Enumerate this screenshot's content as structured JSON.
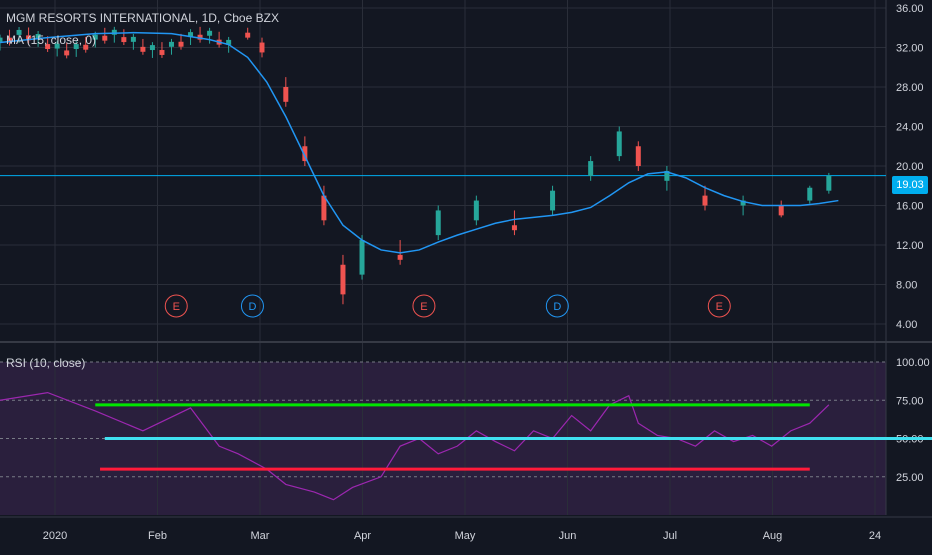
{
  "header": {
    "title": "MGM RESORTS INTERNATIONAL, 1D, Cboe BZX",
    "ma_label": "MA (15, close, 0)",
    "rsi_label": "RSI (10, close)",
    "last_price": "19.03"
  },
  "colors": {
    "background": "#131722",
    "up": "#26a69a",
    "down": "#ef5350",
    "ma": "#2196f3",
    "rsi": "#9c27b0",
    "rsi_band": "#2a1f3d",
    "line_green": "#00e600",
    "line_cyan": "#40e0f0",
    "line_red": "#ff1a3a",
    "grid": "#2a2e39",
    "last_price_line": "#00aeef"
  },
  "events": [
    {
      "label": "E",
      "date": "Feb 13"
    },
    {
      "label": "D",
      "date": "Mar 6"
    },
    {
      "label": "E",
      "date": "Apr 29"
    },
    {
      "label": "D",
      "date": "Jun 5"
    },
    {
      "label": "E",
      "date": "Jul 29"
    }
  ],
  "chart_data": [
    {
      "type": "candlestick",
      "title": "MGM RESORTS INTERNATIONAL, 1D, Cboe BZX",
      "x_ticks": [
        "2020",
        "Feb",
        "Mar",
        "Apr",
        "May",
        "Jun",
        "Jul",
        "Aug",
        "24"
      ],
      "y_ticks": [
        "36.00",
        "32.00",
        "28.00",
        "24.00",
        "20.00",
        "16.00",
        "12.00",
        "8.00",
        "4.00"
      ],
      "ylim": [
        4,
        36
      ],
      "last_value": 19.03,
      "series": [
        {
          "name": "MA (15, close, 0)",
          "type": "line",
          "points": [
            [
              0,
              32.5
            ],
            [
              10,
              33.0
            ],
            [
              20,
              33.4
            ],
            [
              28,
              33.5
            ],
            [
              36,
              33.4
            ],
            [
              44,
              32.8
            ],
            [
              48,
              32.3
            ],
            [
              52,
              31.0
            ],
            [
              56,
              28.5
            ],
            [
              60,
              25.0
            ],
            [
              64,
              21.0
            ],
            [
              68,
              17.0
            ],
            [
              72,
              14.0
            ],
            [
              76,
              12.5
            ],
            [
              80,
              11.5
            ],
            [
              84,
              11.2
            ],
            [
              88,
              11.5
            ],
            [
              92,
              12.3
            ],
            [
              96,
              13.0
            ],
            [
              100,
              13.6
            ],
            [
              104,
              14.2
            ],
            [
              108,
              14.6
            ],
            [
              112,
              14.8
            ],
            [
              116,
              15.0
            ],
            [
              120,
              15.3
            ],
            [
              124,
              15.8
            ],
            [
              128,
              17.0
            ],
            [
              132,
              18.3
            ],
            [
              136,
              19.2
            ],
            [
              140,
              19.4
            ],
            [
              144,
              18.8
            ],
            [
              148,
              17.8
            ],
            [
              152,
              17.0
            ],
            [
              156,
              16.4
            ],
            [
              160,
              16.0
            ],
            [
              164,
              16.0
            ],
            [
              168,
              16.0
            ],
            [
              172,
              16.2
            ],
            [
              176,
              16.5
            ]
          ]
        }
      ],
      "candles": [
        {
          "x": 52,
          "o": 33.5,
          "h": 34.0,
          "l": 32.8,
          "c": 33.0
        },
        {
          "x": 55,
          "o": 32.5,
          "h": 33.0,
          "l": 31.0,
          "c": 31.5
        },
        {
          "x": 60,
          "o": 28.0,
          "h": 29.0,
          "l": 26.0,
          "c": 26.5
        },
        {
          "x": 64,
          "o": 22.0,
          "h": 23.0,
          "l": 20.0,
          "c": 20.5
        },
        {
          "x": 68,
          "o": 17.0,
          "h": 18.0,
          "l": 14.0,
          "c": 14.5
        },
        {
          "x": 72,
          "o": 10.0,
          "h": 11.0,
          "l": 6.0,
          "c": 7.0
        },
        {
          "x": 76,
          "o": 9.0,
          "h": 13.0,
          "l": 8.5,
          "c": 12.5
        },
        {
          "x": 84,
          "o": 11.0,
          "h": 12.5,
          "l": 10.0,
          "c": 10.5
        },
        {
          "x": 92,
          "o": 13.0,
          "h": 16.0,
          "l": 12.5,
          "c": 15.5
        },
        {
          "x": 100,
          "o": 14.5,
          "h": 17.0,
          "l": 14.0,
          "c": 16.5
        },
        {
          "x": 108,
          "o": 14.0,
          "h": 15.5,
          "l": 13.0,
          "c": 13.5
        },
        {
          "x": 116,
          "o": 15.5,
          "h": 18.0,
          "l": 15.0,
          "c": 17.5
        },
        {
          "x": 124,
          "o": 19.0,
          "h": 21.0,
          "l": 18.5,
          "c": 20.5
        },
        {
          "x": 130,
          "o": 21.0,
          "h": 24.0,
          "l": 20.5,
          "c": 23.5
        },
        {
          "x": 134,
          "o": 22.0,
          "h": 22.5,
          "l": 19.5,
          "c": 20.0
        },
        {
          "x": 140,
          "o": 18.5,
          "h": 20.0,
          "l": 17.5,
          "c": 19.5
        },
        {
          "x": 148,
          "o": 17.0,
          "h": 18.0,
          "l": 15.5,
          "c": 16.0
        },
        {
          "x": 156,
          "o": 16.0,
          "h": 17.0,
          "l": 15.0,
          "c": 16.5
        },
        {
          "x": 164,
          "o": 16.0,
          "h": 16.5,
          "l": 14.8,
          "c": 15.0
        },
        {
          "x": 170,
          "o": 16.5,
          "h": 18.0,
          "l": 16.2,
          "c": 17.8
        },
        {
          "x": 174,
          "o": 17.5,
          "h": 19.3,
          "l": 17.2,
          "c": 19.0
        }
      ]
    },
    {
      "type": "line",
      "title": "RSI (10, close)",
      "y_ticks": [
        "100.00",
        "75.00",
        "50.00",
        "25.00"
      ],
      "ylim": [
        0,
        100
      ],
      "series": [
        {
          "name": "RSI (10, close)",
          "points": [
            [
              0,
              75
            ],
            [
              10,
              80
            ],
            [
              20,
              68
            ],
            [
              30,
              55
            ],
            [
              40,
              70
            ],
            [
              46,
              45
            ],
            [
              50,
              40
            ],
            [
              56,
              30
            ],
            [
              60,
              20
            ],
            [
              66,
              15
            ],
            [
              70,
              10
            ],
            [
              74,
              18
            ],
            [
              80,
              25
            ],
            [
              84,
              45
            ],
            [
              88,
              50
            ],
            [
              92,
              40
            ],
            [
              96,
              45
            ],
            [
              100,
              55
            ],
            [
              104,
              48
            ],
            [
              108,
              42
            ],
            [
              112,
              55
            ],
            [
              116,
              50
            ],
            [
              120,
              65
            ],
            [
              124,
              55
            ],
            [
              128,
              72
            ],
            [
              132,
              78
            ],
            [
              134,
              60
            ],
            [
              138,
              52
            ],
            [
              142,
              50
            ],
            [
              146,
              45
            ],
            [
              150,
              55
            ],
            [
              154,
              48
            ],
            [
              158,
              52
            ],
            [
              162,
              45
            ],
            [
              166,
              55
            ],
            [
              170,
              60
            ],
            [
              174,
              72
            ]
          ]
        },
        {
          "name": "",
          "type": "hline",
          "y": 72
        },
        {
          "name": "",
          "type": "hline",
          "y": 50
        },
        {
          "name": "",
          "type": "hline",
          "y": 30
        }
      ]
    }
  ]
}
